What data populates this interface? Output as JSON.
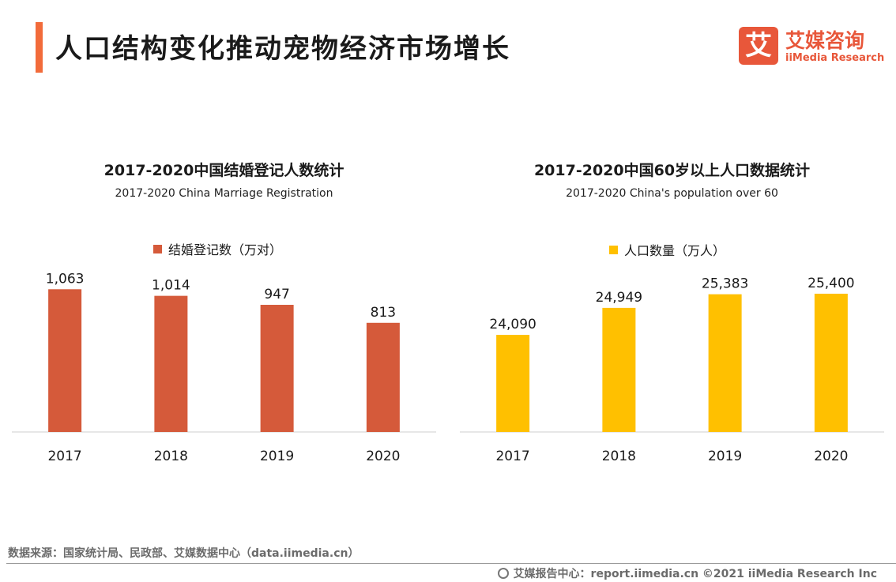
{
  "header": {
    "title": "人口结构变化推动宠物经济市场增长",
    "accent_color": "#f26b3a"
  },
  "logo": {
    "mark": "艾",
    "name_cn": "艾媒咨询",
    "name_en": "iiMedia Research",
    "color": "#e8573a"
  },
  "chart_data": [
    {
      "type": "bar",
      "title": "2017-2020中国结婚登记人数统计",
      "subtitle": "2017-2020 China Marriage Registration",
      "categories": [
        "2017",
        "2018",
        "2019",
        "2020"
      ],
      "series": [
        {
          "name": "结婚登记数（万对）",
          "values": [
            1063,
            1014,
            947,
            813
          ],
          "color": "#d55a3a"
        }
      ],
      "value_labels": [
        "1,063",
        "1,014",
        "947",
        "813"
      ],
      "ylim": [
        0,
        1100
      ],
      "legend_position": "top-center",
      "grid": false
    },
    {
      "type": "bar",
      "title": "2017-2020中国60岁以上人口数据统计",
      "subtitle": "2017-2020 China's population over 60",
      "categories": [
        "2017",
        "2018",
        "2019",
        "2020"
      ],
      "series": [
        {
          "name": "人口数量（万人）",
          "values": [
            24090,
            24949,
            25383,
            25400
          ],
          "color": "#ffc000"
        }
      ],
      "value_labels": [
        "24,090",
        "24,949",
        "25,383",
        "25,400"
      ],
      "ylim": [
        21000,
        25700
      ],
      "legend_position": "top-center",
      "grid": false
    }
  ],
  "source": "数据来源：国家统计局、民政部、艾媒数据中心（data.iimedia.cn）",
  "footer": "艾媒报告中心：report.iimedia.cn ©2021  iiMedia Research  Inc"
}
